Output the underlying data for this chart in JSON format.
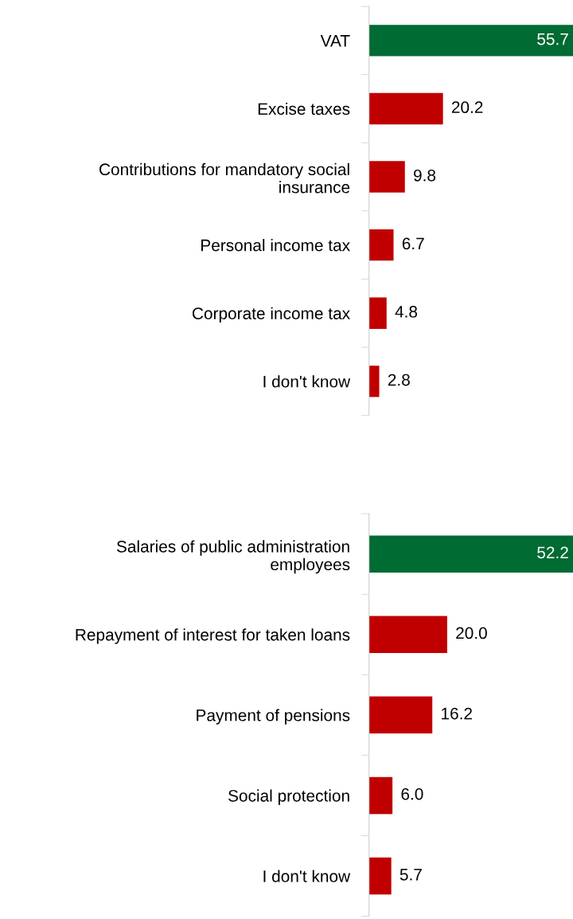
{
  "chart_data": [
    {
      "type": "bar",
      "orientation": "horizontal",
      "grid": false,
      "categories": [
        "VAT",
        "Excise taxes",
        "Contributions for mandatory social insurance",
        "Personal income tax",
        "Corporate income tax",
        "I don't know"
      ],
      "values": [
        55.7,
        20.2,
        9.8,
        6.7,
        4.8,
        2.8
      ],
      "value_labels": [
        "55.7",
        "20.2",
        "9.8",
        "6.7",
        "4.8",
        "2.8"
      ],
      "colors": [
        "#006b32",
        "#c00000",
        "#c00000",
        "#c00000",
        "#c00000",
        "#c00000"
      ]
    },
    {
      "type": "bar",
      "orientation": "horizontal",
      "grid": false,
      "categories": [
        "Salaries of public administration employees",
        "Repayment of interest for taken loans",
        "Payment of pensions",
        "Social protection",
        "I don't know"
      ],
      "values": [
        52.2,
        20.0,
        16.2,
        6.0,
        5.7
      ],
      "value_labels": [
        "52.2",
        "20.0",
        "16.2",
        "6.0",
        "5.7"
      ],
      "colors": [
        "#006b32",
        "#c00000",
        "#c00000",
        "#c00000",
        "#c00000"
      ]
    }
  ]
}
